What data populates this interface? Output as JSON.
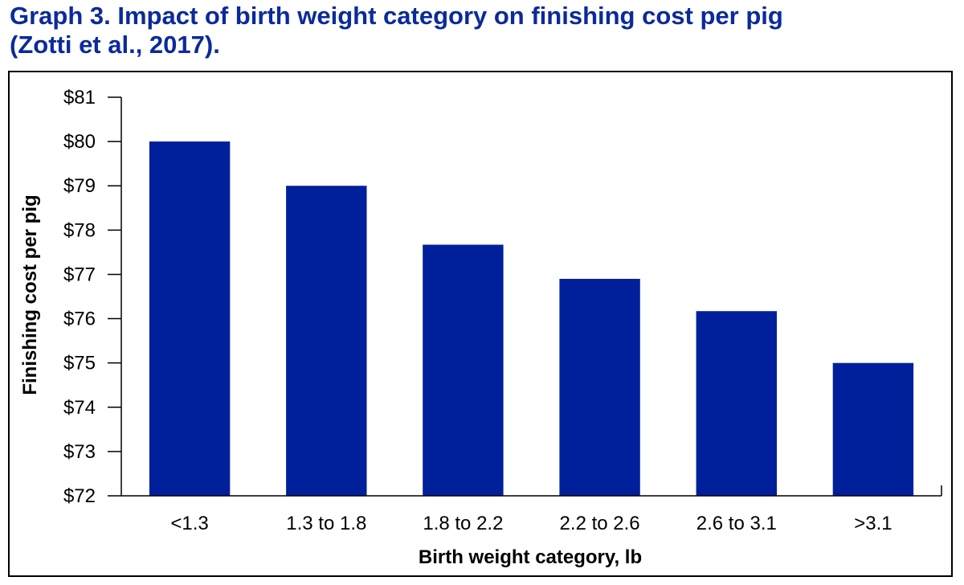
{
  "chart_data": {
    "type": "bar",
    "title_line1": "Graph 3.  Impact of birth weight category on finishing cost per pig",
    "title_line2": "(Zotti et al., 2017).",
    "xlabel": "Birth weight category, lb",
    "ylabel": "Finishing cost per pig",
    "categories": [
      "<1.3",
      "1.3 to 1.8",
      "1.8 to 2.2",
      "2.2 to 2.6",
      "2.6 to 3.1",
      ">3.1"
    ],
    "values": [
      80.0,
      79.0,
      77.67,
      76.9,
      76.17,
      75.0
    ],
    "ylim": [
      72,
      81
    ],
    "yticks": [
      72,
      73,
      74,
      75,
      76,
      77,
      78,
      79,
      80,
      81
    ],
    "ytick_labels": [
      "$72",
      "$73",
      "$74",
      "$75",
      "$76",
      "$77",
      "$78",
      "$79",
      "$80",
      "$81"
    ],
    "bar_color": "#00209b",
    "title_color": "#0b2a9c",
    "grid": false,
    "legend": "none"
  }
}
